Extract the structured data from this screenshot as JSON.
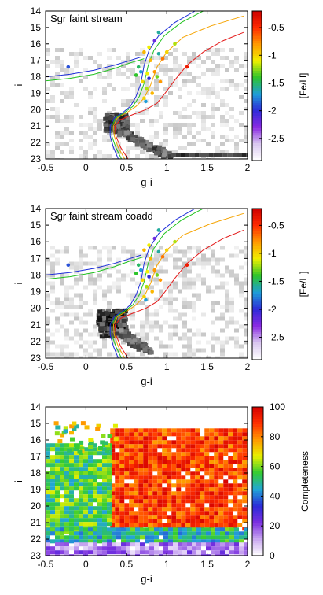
{
  "colors": {
    "tracks": [
      "#1c2dd8",
      "#21c21f",
      "#f5a300",
      "#e41a1a"
    ],
    "colormap_fe": [
      "#ffffff",
      "#d9c7f0",
      "#8a2be2",
      "#2e2bd8",
      "#1f9ed8",
      "#2ec42b",
      "#f0f000",
      "#ff9900",
      "#ff2a00",
      "#cc0000"
    ],
    "colormap_completeness": [
      "#ffffff",
      "#c8a6f0",
      "#7b2fe0",
      "#2b2bd8",
      "#22a6d6",
      "#33cc33",
      "#e8f000",
      "#ff9a00",
      "#ff3000",
      "#d40000"
    ]
  },
  "chart_data": [
    {
      "type": "scatter",
      "title": "Sgr faint stream",
      "xlabel": "g-i",
      "ylabel": "i",
      "xlim": [
        -0.5,
        2
      ],
      "ylim": [
        23,
        14
      ],
      "y_inverted": true,
      "xticks": [
        "-0.5",
        "0",
        "0.5",
        "1",
        "1.5",
        "2"
      ],
      "yticks": [
        "14",
        "15",
        "16",
        "17",
        "18",
        "19",
        "20",
        "21",
        "22",
        "23"
      ],
      "colorbar": {
        "label": "[Fe/H]",
        "range": [
          -2.9,
          -0.2
        ],
        "ticks": [
          "-0.5",
          "-1",
          "-1.5",
          "-2",
          "-2.5"
        ]
      },
      "isochrones": [
        {
          "color": "#1c2dd8",
          "x": [
            1.35,
            1.1,
            0.9,
            0.78,
            0.72,
            0.68,
            0.62,
            0.55,
            0.45,
            0.35,
            0.3,
            0.3,
            0.34,
            0.4
          ],
          "y": [
            14.0,
            14.7,
            15.5,
            16.4,
            17.3,
            18.4,
            19.2,
            19.8,
            20.2,
            20.5,
            21.0,
            21.6,
            22.3,
            23.0
          ]
        },
        {
          "color": "#21c21f",
          "x": [
            1.45,
            1.18,
            0.97,
            0.84,
            0.77,
            0.72,
            0.66,
            0.58,
            0.47,
            0.37,
            0.32,
            0.32,
            0.37,
            0.44
          ],
          "y": [
            14.0,
            14.7,
            15.5,
            16.4,
            17.3,
            18.4,
            19.2,
            19.8,
            20.2,
            20.5,
            21.0,
            21.6,
            22.3,
            23.0
          ]
        },
        {
          "color": "#f5a300",
          "x": [
            1.95,
            1.55,
            1.2,
            1.0,
            0.88,
            0.8,
            0.72,
            0.62,
            0.5,
            0.39,
            0.34,
            0.35,
            0.4,
            0.48
          ],
          "y": [
            14.3,
            14.9,
            15.6,
            16.5,
            17.4,
            18.5,
            19.3,
            19.8,
            20.2,
            20.5,
            21.0,
            21.6,
            22.3,
            23.0
          ]
        },
        {
          "color": "#e41a1a",
          "x": [
            1.95,
            1.7,
            1.45,
            1.25,
            1.1,
            0.98,
            0.88,
            0.74,
            0.58,
            0.43,
            0.36,
            0.37,
            0.43,
            0.52
          ],
          "y": [
            15.3,
            15.8,
            16.5,
            17.3,
            18.2,
            19.0,
            19.6,
            20.0,
            20.3,
            20.6,
            21.0,
            21.6,
            22.3,
            23.0
          ]
        }
      ],
      "hb_branches": [
        {
          "color": "#1c2dd8",
          "x": [
            -0.5,
            -0.2,
            0.1,
            0.35,
            0.55,
            0.68
          ],
          "y": [
            18.0,
            17.85,
            17.6,
            17.3,
            17.0,
            16.8
          ]
        },
        {
          "color": "#21c21f",
          "x": [
            -0.5,
            -0.2,
            0.1,
            0.35,
            0.55,
            0.72
          ],
          "y": [
            18.25,
            18.1,
            17.85,
            17.5,
            17.15,
            16.9
          ]
        }
      ],
      "stars": [
        {
          "x": -0.22,
          "y": 17.4,
          "feh": -1.9
        },
        {
          "x": 0.65,
          "y": 17.4,
          "feh": -1.5
        },
        {
          "x": 0.72,
          "y": 16.5,
          "feh": -0.9
        },
        {
          "x": 0.78,
          "y": 16.2,
          "feh": -1.1
        },
        {
          "x": 0.62,
          "y": 17.9,
          "feh": -1.4
        },
        {
          "x": 0.7,
          "y": 18.3,
          "feh": -1.0
        },
        {
          "x": 0.75,
          "y": 18.7,
          "feh": -1.2
        },
        {
          "x": 0.8,
          "y": 17.0,
          "feh": -0.9
        },
        {
          "x": 0.85,
          "y": 17.7,
          "feh": -0.8
        },
        {
          "x": 0.9,
          "y": 16.6,
          "feh": -1.6
        },
        {
          "x": 0.82,
          "y": 19.0,
          "feh": -0.9
        },
        {
          "x": 0.74,
          "y": 19.5,
          "feh": -1.7
        },
        {
          "x": 0.68,
          "y": 17.7,
          "feh": -1.7
        },
        {
          "x": 0.95,
          "y": 16.9,
          "feh": -0.7
        },
        {
          "x": 1.0,
          "y": 16.5,
          "feh": -1.0
        },
        {
          "x": 1.1,
          "y": 16.0,
          "feh": -1.2
        },
        {
          "x": 0.88,
          "y": 18.0,
          "feh": -1.3
        },
        {
          "x": 0.78,
          "y": 18.1,
          "feh": -2.0
        },
        {
          "x": 0.85,
          "y": 15.8,
          "feh": -2.2
        },
        {
          "x": 0.9,
          "y": 15.3,
          "feh": -1.6
        },
        {
          "x": 1.25,
          "y": 17.4,
          "feh": -0.4
        },
        {
          "x": 0.76,
          "y": 17.8,
          "feh": -1.1
        },
        {
          "x": 0.72,
          "y": 19.3,
          "feh": -1.0
        },
        {
          "x": 0.92,
          "y": 18.3,
          "feh": -0.8
        }
      ],
      "hess_features": [
        {
          "kind": "turnoff",
          "x": 0.35,
          "y": 20.7,
          "wx": 0.28,
          "wy": 1.1,
          "level": 0.9
        },
        {
          "kind": "msdiag",
          "x0": 0.38,
          "y0": 21.2,
          "x1": 1.0,
          "y1": 22.7,
          "level": 0.85
        },
        {
          "kind": "redstrip",
          "x0": 1.05,
          "x1": 2.0,
          "y": 22.8,
          "level": 0.9
        }
      ]
    },
    {
      "type": "scatter",
      "title": "Sgr faint stream coadd",
      "xlabel": "g-i",
      "ylabel": "i",
      "xlim": [
        -0.5,
        2
      ],
      "ylim": [
        23,
        14
      ],
      "y_inverted": true,
      "xticks": [
        "-0.5",
        "0",
        "0.5",
        "1",
        "1.5",
        "2"
      ],
      "yticks": [
        "14",
        "15",
        "16",
        "17",
        "18",
        "19",
        "20",
        "21",
        "22",
        "23"
      ],
      "colorbar": {
        "label": "[Fe/H]",
        "range": [
          -2.9,
          -0.2
        ],
        "ticks": [
          "-0.5",
          "-1",
          "-1.5",
          "-2",
          "-2.5"
        ]
      },
      "stars_same_as_panel": 0,
      "isochrones_same_as_panel": 0,
      "hess_features": [
        {
          "kind": "turnoff",
          "x": 0.3,
          "y": 20.8,
          "wx": 0.35,
          "wy": 1.6,
          "level": 1.0
        },
        {
          "kind": "msdiag",
          "x0": 0.35,
          "y0": 21.2,
          "x1": 0.75,
          "y1": 22.5,
          "level": 0.8
        }
      ]
    },
    {
      "type": "heatmap",
      "xlabel": "g-i",
      "ylabel": "i",
      "xlim": [
        -0.5,
        2
      ],
      "ylim": [
        23,
        14
      ],
      "y_inverted": true,
      "xticks": [
        "-0.5",
        "0",
        "0.5",
        "1",
        "1.5",
        "2"
      ],
      "yticks": [
        "14",
        "15",
        "16",
        "17",
        "18",
        "19",
        "20",
        "21",
        "22",
        "23"
      ],
      "colorbar": {
        "label": "Completeness",
        "range": [
          0,
          100
        ],
        "ticks": [
          "100",
          "80",
          "60",
          "40",
          "20",
          "0"
        ]
      },
      "regions": [
        {
          "x0": 0.3,
          "x1": 2.0,
          "y0": 15.3,
          "y1": 21.3,
          "value": 88
        },
        {
          "x0": -0.5,
          "x1": 0.3,
          "y0": 16.2,
          "y1": 21.5,
          "value": 55
        },
        {
          "x0": -0.5,
          "x1": 2.0,
          "y0": 21.3,
          "y1": 22.2,
          "value": 50
        },
        {
          "x0": -0.5,
          "x1": 2.0,
          "y0": 22.2,
          "y1": 23.0,
          "value": 15
        }
      ]
    }
  ]
}
